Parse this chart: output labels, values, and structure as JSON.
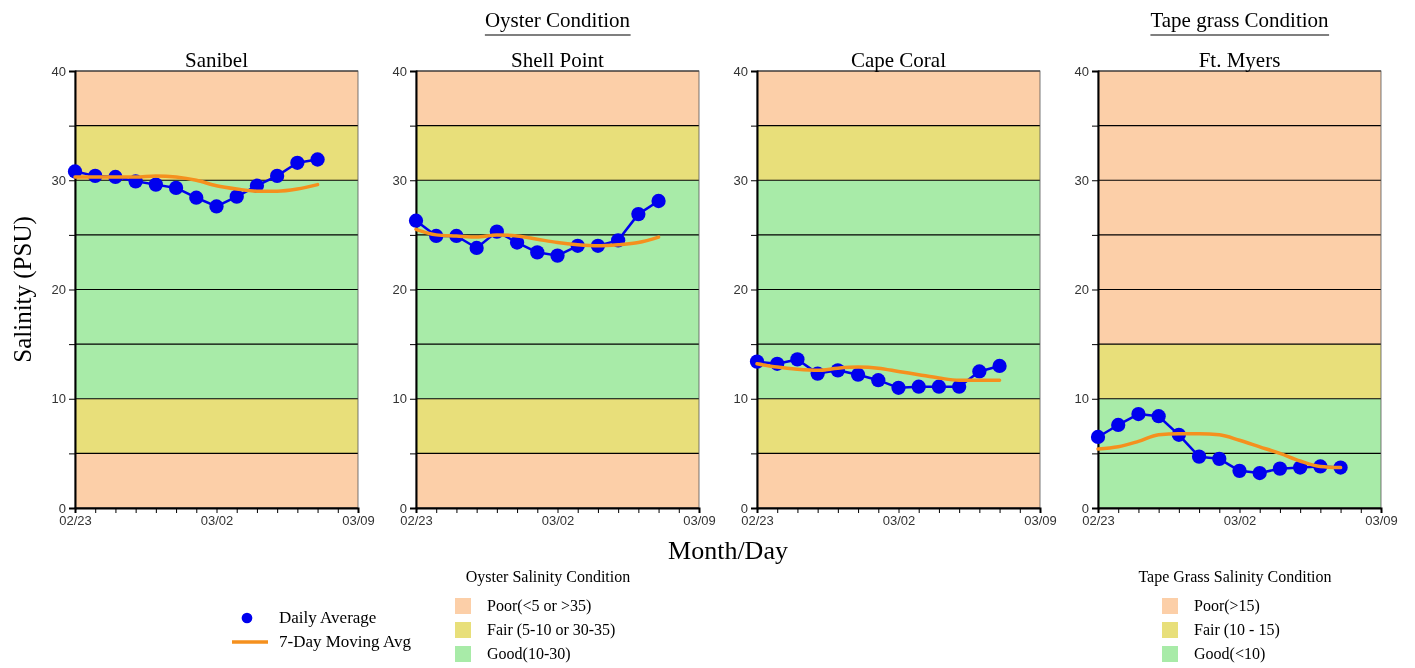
{
  "chart_data": [
    {
      "type": "line",
      "title": "Sanibel",
      "ylabel": "Salinity (PSU)",
      "legend": "bottom",
      "legend_title": "Oyster Salinity Condition",
      "grid": "y",
      "x": [
        "--02-23",
        "--02-24",
        "--02-25",
        "--02-26",
        "--02-27",
        "--02-28",
        "--03-01",
        "--03-02",
        "--03-03",
        "--03-04",
        "--03-05",
        "--03-06",
        "--03-07"
      ],
      "xlim": [
        "--02-23",
        "--03-09"
      ],
      "xticks": [
        {
          "value": "--02-23",
          "label": "02/23"
        },
        {
          "value": "--02-24",
          "label": null
        },
        {
          "value": "--02-25",
          "label": null
        },
        {
          "value": "--02-26",
          "label": null
        },
        {
          "value": "--02-27",
          "label": null
        },
        {
          "value": "--02-28",
          "label": null
        },
        {
          "value": "--03-01",
          "label": null
        },
        {
          "value": "--03-02",
          "label": "03/02"
        },
        {
          "value": "--03-03",
          "label": null
        },
        {
          "value": "--03-04",
          "label": null
        },
        {
          "value": "--03-05",
          "label": null
        },
        {
          "value": "--03-06",
          "label": null
        },
        {
          "value": "--03-07",
          "label": null
        },
        {
          "value": "--03-08",
          "label": null
        },
        {
          "value": "--03-09",
          "label": "03/09"
        }
      ],
      "ylim": [
        0,
        40
      ],
      "yticks": [
        0,
        {
          "value": 5,
          "label": null
        },
        10,
        {
          "value": 15,
          "label": null
        },
        20,
        {
          "value": 25,
          "label": null
        },
        30,
        {
          "value": 35,
          "label": null
        },
        40
      ],
      "bands": [
        {
          "axis": "y",
          "from": 0,
          "to": 5,
          "label": "Poor(<5 or >35)",
          "color": "#fccfa8"
        },
        {
          "axis": "y",
          "from": 5,
          "to": 10,
          "label": "Fair (5-10 or 30-35)",
          "color": "#e8df7a"
        },
        {
          "axis": "y",
          "from": 10,
          "to": 30,
          "label": "Good(10-30)",
          "color": "#a8eba8"
        },
        {
          "axis": "y",
          "from": 30,
          "to": 35,
          "color": "#e8df7a"
        },
        {
          "axis": "y",
          "from": 35,
          "to": 40,
          "color": "#fccfa8"
        }
      ],
      "series": [
        {
          "name": "Daily Average",
          "color": "#0000ee",
          "marker": "circle",
          "values": [
            30.8,
            30.4,
            30.3,
            29.9,
            29.6,
            29.3,
            28.4,
            27.6,
            28.5,
            29.5,
            30.4,
            31.6,
            31.9
          ]
        },
        {
          "name": "7-Day Moving Avg",
          "color": "#f5901e",
          "marker": "none",
          "values": [
            30.3,
            30.3,
            30.3,
            30.3,
            30.4,
            30.3,
            30.0,
            29.5,
            29.2,
            29.0,
            29.0,
            29.2,
            29.6
          ]
        }
      ]
    },
    {
      "type": "line",
      "title": "Shell Point",
      "subtitle": "Oyster Condition",
      "xlabel": "Month/Day",
      "grid": "y",
      "x": [
        "--02-23",
        "--02-24",
        "--02-25",
        "--02-26",
        "--02-27",
        "--02-28",
        "--03-01",
        "--03-02",
        "--03-03",
        "--03-04",
        "--03-05",
        "--03-06",
        "--03-07"
      ],
      "xlim": [
        "--02-23",
        "--03-09"
      ],
      "xticks": [
        {
          "value": "--02-23",
          "label": "02/23"
        },
        {
          "value": "--02-24",
          "label": null
        },
        {
          "value": "--02-25",
          "label": null
        },
        {
          "value": "--02-26",
          "label": null
        },
        {
          "value": "--02-27",
          "label": null
        },
        {
          "value": "--02-28",
          "label": null
        },
        {
          "value": "--03-01",
          "label": null
        },
        {
          "value": "--03-02",
          "label": "03/02"
        },
        {
          "value": "--03-03",
          "label": null
        },
        {
          "value": "--03-04",
          "label": null
        },
        {
          "value": "--03-05",
          "label": null
        },
        {
          "value": "--03-06",
          "label": null
        },
        {
          "value": "--03-07",
          "label": null
        },
        {
          "value": "--03-08",
          "label": null
        },
        {
          "value": "--03-09",
          "label": "03/09"
        }
      ],
      "ylim": [
        0,
        40
      ],
      "yticks": [
        0,
        {
          "value": 5,
          "label": null
        },
        10,
        {
          "value": 15,
          "label": null
        },
        20,
        {
          "value": 25,
          "label": null
        },
        30,
        {
          "value": 35,
          "label": null
        },
        40
      ],
      "bands": [
        {
          "axis": "y",
          "from": 0,
          "to": 5,
          "color": "#fccfa8"
        },
        {
          "axis": "y",
          "from": 5,
          "to": 10,
          "color": "#e8df7a"
        },
        {
          "axis": "y",
          "from": 10,
          "to": 30,
          "color": "#a8eba8"
        },
        {
          "axis": "y",
          "from": 30,
          "to": 35,
          "color": "#e8df7a"
        },
        {
          "axis": "y",
          "from": 35,
          "to": 40,
          "color": "#fccfa8"
        }
      ],
      "series": [
        {
          "color": "#0000ee",
          "marker": "circle",
          "values": [
            26.3,
            24.9,
            24.9,
            23.8,
            25.3,
            24.3,
            23.4,
            23.1,
            24.0,
            24.0,
            24.5,
            26.9,
            28.1
          ]
        },
        {
          "color": "#f5901e",
          "marker": "none",
          "values": [
            25.5,
            25.0,
            24.9,
            24.8,
            25.0,
            24.9,
            24.6,
            24.3,
            24.1,
            24.0,
            24.1,
            24.3,
            24.8
          ]
        }
      ]
    },
    {
      "type": "line",
      "title": "Cape Coral",
      "grid": "y",
      "x": [
        "--02-23",
        "--02-24",
        "--02-25",
        "--02-26",
        "--02-27",
        "--02-28",
        "--03-01",
        "--03-02",
        "--03-03",
        "--03-04",
        "--03-05",
        "--03-06",
        "--03-07"
      ],
      "xlim": [
        "--02-23",
        "--03-09"
      ],
      "xticks": [
        {
          "value": "--02-23",
          "label": "02/23"
        },
        {
          "value": "--02-24",
          "label": null
        },
        {
          "value": "--02-25",
          "label": null
        },
        {
          "value": "--02-26",
          "label": null
        },
        {
          "value": "--02-27",
          "label": null
        },
        {
          "value": "--02-28",
          "label": null
        },
        {
          "value": "--03-01",
          "label": null
        },
        {
          "value": "--03-02",
          "label": "03/02"
        },
        {
          "value": "--03-03",
          "label": null
        },
        {
          "value": "--03-04",
          "label": null
        },
        {
          "value": "--03-05",
          "label": null
        },
        {
          "value": "--03-06",
          "label": null
        },
        {
          "value": "--03-07",
          "label": null
        },
        {
          "value": "--03-08",
          "label": null
        },
        {
          "value": "--03-09",
          "label": "03/09"
        }
      ],
      "ylim": [
        0,
        40
      ],
      "yticks": [
        0,
        {
          "value": 5,
          "label": null
        },
        10,
        {
          "value": 15,
          "label": null
        },
        20,
        {
          "value": 25,
          "label": null
        },
        30,
        {
          "value": 35,
          "label": null
        },
        40
      ],
      "bands": [
        {
          "axis": "y",
          "from": 0,
          "to": 5,
          "color": "#fccfa8"
        },
        {
          "axis": "y",
          "from": 5,
          "to": 10,
          "color": "#e8df7a"
        },
        {
          "axis": "y",
          "from": 10,
          "to": 30,
          "color": "#a8eba8"
        },
        {
          "axis": "y",
          "from": 30,
          "to": 35,
          "color": "#e8df7a"
        },
        {
          "axis": "y",
          "from": 35,
          "to": 40,
          "color": "#fccfa8"
        }
      ],
      "series": [
        {
          "color": "#0000ee",
          "marker": "circle",
          "values": [
            13.4,
            13.2,
            13.6,
            12.3,
            12.6,
            12.2,
            11.7,
            11.0,
            11.1,
            11.1,
            11.1,
            12.5,
            13.0
          ]
        },
        {
          "color": "#f5901e",
          "marker": "none",
          "values": [
            13.2,
            12.9,
            12.7,
            12.6,
            12.8,
            12.9,
            12.8,
            12.5,
            12.2,
            11.9,
            11.7,
            11.7,
            11.7
          ]
        }
      ]
    },
    {
      "type": "line",
      "title": "Ft. Myers",
      "subtitle": "Tape grass Condition",
      "legend": "bottom",
      "legend_title": "Tape Grass Salinity Condition",
      "grid": "y",
      "x": [
        "--02-23",
        "--02-24",
        "--02-25",
        "--02-26",
        "--02-27",
        "--02-28",
        "--03-01",
        "--03-02",
        "--03-03",
        "--03-04",
        "--03-05",
        "--03-06",
        "--03-07"
      ],
      "xlim": [
        "--02-23",
        "--03-09"
      ],
      "xticks": [
        {
          "value": "--02-23",
          "label": "02/23"
        },
        {
          "value": "--02-24",
          "label": null
        },
        {
          "value": "--02-25",
          "label": null
        },
        {
          "value": "--02-26",
          "label": null
        },
        {
          "value": "--02-27",
          "label": null
        },
        {
          "value": "--02-28",
          "label": null
        },
        {
          "value": "--03-01",
          "label": null
        },
        {
          "value": "--03-02",
          "label": "03/02"
        },
        {
          "value": "--03-03",
          "label": null
        },
        {
          "value": "--03-04",
          "label": null
        },
        {
          "value": "--03-05",
          "label": null
        },
        {
          "value": "--03-06",
          "label": null
        },
        {
          "value": "--03-07",
          "label": null
        },
        {
          "value": "--03-08",
          "label": null
        },
        {
          "value": "--03-09",
          "label": "03/09"
        }
      ],
      "ylim": [
        0,
        40
      ],
      "yticks": [
        0,
        {
          "value": 5,
          "label": null
        },
        10,
        {
          "value": 15,
          "label": null
        },
        20,
        {
          "value": 25,
          "label": null
        },
        30,
        {
          "value": 35,
          "label": null
        },
        40
      ],
      "bands": [
        {
          "axis": "y",
          "from": 15,
          "to": 40,
          "label": "Poor(>15)",
          "color": "#fccfa8"
        },
        {
          "axis": "y",
          "from": 10,
          "to": 15,
          "label": "Fair (10 - 15)",
          "color": "#e8df7a"
        },
        {
          "axis": "y",
          "from": 0,
          "to": 10,
          "label": "Good(<10)",
          "color": "#a8eba8"
        }
      ],
      "series": [
        {
          "color": "#0000ee",
          "marker": "circle",
          "values": [
            6.5,
            7.6,
            8.6,
            8.4,
            6.7,
            4.7,
            4.5,
            3.4,
            3.2,
            3.6,
            3.7,
            3.8,
            3.7
          ]
        },
        {
          "color": "#f5901e",
          "marker": "none",
          "values": [
            5.4,
            5.6,
            6.1,
            6.7,
            6.8,
            6.8,
            6.7,
            6.2,
            5.6,
            5.0,
            4.3,
            3.8,
            3.7
          ]
        }
      ]
    }
  ]
}
